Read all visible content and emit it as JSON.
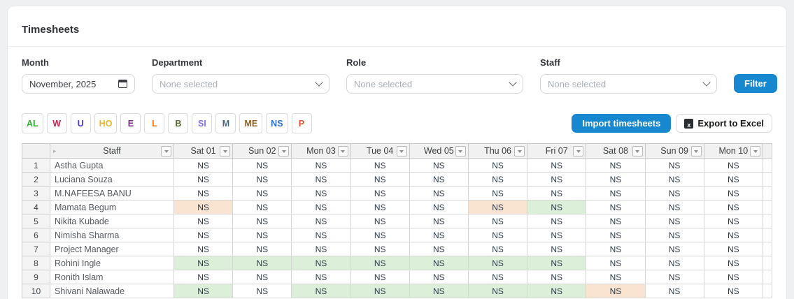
{
  "page": {
    "title": "Timesheets"
  },
  "filters": {
    "month": {
      "label": "Month",
      "value": "November, 2025"
    },
    "department": {
      "label": "Department",
      "placeholder": "None selected"
    },
    "role": {
      "label": "Role",
      "placeholder": "None selected"
    },
    "staff": {
      "label": "Staff",
      "placeholder": "None selected"
    },
    "filter_button": "Filter"
  },
  "legend": [
    {
      "code": "AL",
      "color": "#2db32d"
    },
    {
      "code": "W",
      "color": "#c9254e"
    },
    {
      "code": "U",
      "color": "#5036d6"
    },
    {
      "code": "HO",
      "color": "#e7b731"
    },
    {
      "code": "E",
      "color": "#7c2d85"
    },
    {
      "code": "L",
      "color": "#ea7a1e"
    },
    {
      "code": "B",
      "color": "#556b2f"
    },
    {
      "code": "SI",
      "color": "#7d74e8"
    },
    {
      "code": "M",
      "color": "#4a6781"
    },
    {
      "code": "ME",
      "color": "#92602a"
    },
    {
      "code": "NS",
      "color": "#2e71d4"
    },
    {
      "code": "P",
      "color": "#dd5230"
    }
  ],
  "actions": {
    "import": "Import timesheets",
    "export": "Export to Excel",
    "excel_icon_letter": "x"
  },
  "table": {
    "staff_header": "Staff",
    "day_headers": [
      "Sat 01",
      "Sun 02",
      "Mon 03",
      "Tue 04",
      "Wed 05",
      "Thu 06",
      "Fri 07",
      "Sat 08",
      "Sun 09",
      "Mon 10"
    ],
    "rows": [
      {
        "num": "1",
        "name": "Astha Gupta",
        "values": [
          "NS",
          "NS",
          "NS",
          "NS",
          "NS",
          "NS",
          "NS",
          "NS",
          "NS",
          "NS"
        ],
        "highlights": [
          "",
          "",
          "",
          "",
          "",
          "",
          "",
          "",
          "",
          ""
        ]
      },
      {
        "num": "2",
        "name": "Luciana Souza",
        "values": [
          "NS",
          "NS",
          "NS",
          "NS",
          "NS",
          "NS",
          "NS",
          "NS",
          "NS",
          "NS"
        ],
        "highlights": [
          "",
          "",
          "",
          "",
          "",
          "",
          "",
          "",
          "",
          ""
        ]
      },
      {
        "num": "3",
        "name": "M.NAFEESA BANU",
        "values": [
          "NS",
          "NS",
          "NS",
          "NS",
          "NS",
          "NS",
          "NS",
          "NS",
          "NS",
          "NS"
        ],
        "highlights": [
          "",
          "",
          "",
          "",
          "",
          "",
          "",
          "",
          "",
          ""
        ]
      },
      {
        "num": "4",
        "name": "Mamata Begum",
        "values": [
          "NS",
          "NS",
          "NS",
          "NS",
          "NS",
          "NS",
          "NS",
          "NS",
          "NS",
          "NS"
        ],
        "highlights": [
          "peach",
          "",
          "",
          "",
          "",
          "peach",
          "green",
          "",
          "",
          ""
        ]
      },
      {
        "num": "5",
        "name": "Nikita Kubade",
        "values": [
          "NS",
          "NS",
          "NS",
          "NS",
          "NS",
          "NS",
          "NS",
          "NS",
          "NS",
          "NS"
        ],
        "highlights": [
          "",
          "",
          "",
          "",
          "",
          "",
          "",
          "",
          "",
          ""
        ]
      },
      {
        "num": "6",
        "name": "Nimisha Sharma",
        "values": [
          "NS",
          "NS",
          "NS",
          "NS",
          "NS",
          "NS",
          "NS",
          "NS",
          "NS",
          "NS"
        ],
        "highlights": [
          "",
          "",
          "",
          "",
          "",
          "",
          "",
          "",
          "",
          ""
        ]
      },
      {
        "num": "7",
        "name": "Project Manager",
        "values": [
          "NS",
          "NS",
          "NS",
          "NS",
          "NS",
          "NS",
          "NS",
          "NS",
          "NS",
          "NS"
        ],
        "highlights": [
          "",
          "",
          "",
          "",
          "",
          "",
          "",
          "",
          "",
          ""
        ]
      },
      {
        "num": "8",
        "name": "Rohini Ingle",
        "values": [
          "NS",
          "NS",
          "NS",
          "NS",
          "NS",
          "NS",
          "NS",
          "NS",
          "NS",
          "NS"
        ],
        "highlights": [
          "green",
          "green",
          "green",
          "green",
          "green",
          "green",
          "green",
          "",
          "",
          ""
        ]
      },
      {
        "num": "9",
        "name": "Ronith Islam",
        "values": [
          "NS",
          "NS",
          "NS",
          "NS",
          "NS",
          "NS",
          "NS",
          "NS",
          "NS",
          "NS"
        ],
        "highlights": [
          "",
          "",
          "",
          "",
          "",
          "",
          "",
          "",
          "",
          ""
        ]
      },
      {
        "num": "10",
        "name": "Shivani Nalawade",
        "values": [
          "NS",
          "NS",
          "NS",
          "NS",
          "NS",
          "NS",
          "NS",
          "NS",
          "NS",
          "NS"
        ],
        "highlights": [
          "green",
          "",
          "green",
          "green",
          "green",
          "green",
          "green",
          "peach",
          "",
          ""
        ]
      }
    ]
  },
  "colors": {
    "accent": "#1787d0",
    "highlight_green": "#dcefd8",
    "highlight_peach": "#f9e3d1"
  }
}
